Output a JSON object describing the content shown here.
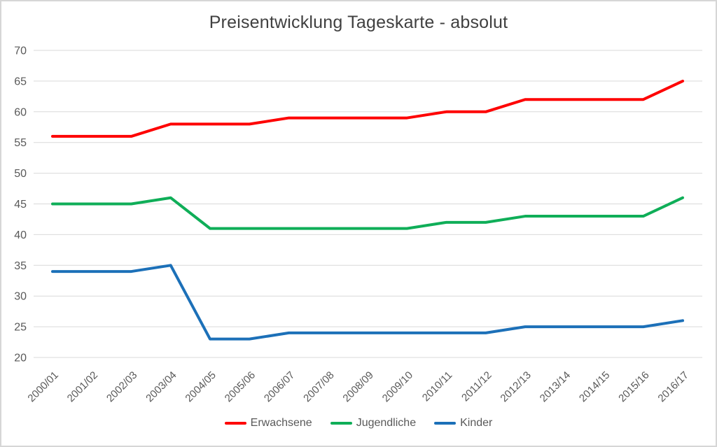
{
  "chart_data": {
    "type": "line",
    "title": "Preisentwicklung Tageskarte - absolut",
    "categories": [
      "2000/01",
      "2001/02",
      "2002/03",
      "2003/04",
      "2004/05",
      "2005/06",
      "2006/07",
      "2007/08",
      "2008/09",
      "2009/10",
      "2010/11",
      "2011/12",
      "2012/13",
      "2013/14",
      "2014/15",
      "2015/16",
      "2016/17"
    ],
    "series": [
      {
        "name": "Erwachsene",
        "color": "#fe0000",
        "values": [
          56,
          56,
          56,
          58,
          58,
          58,
          59,
          59,
          59,
          59,
          60,
          60,
          62,
          62,
          62,
          62,
          65
        ]
      },
      {
        "name": "Jugendliche",
        "color": "#0fae58",
        "values": [
          45,
          45,
          45,
          46,
          41,
          41,
          41,
          41,
          41,
          41,
          42,
          42,
          43,
          43,
          43,
          43,
          46
        ]
      },
      {
        "name": "Kinder",
        "color": "#1c70b8",
        "values": [
          34,
          34,
          34,
          35,
          23,
          23,
          24,
          24,
          24,
          24,
          24,
          24,
          25,
          25,
          25,
          25,
          26
        ]
      }
    ],
    "ylim": [
      20,
      70
    ],
    "yticks": [
      20,
      25,
      30,
      35,
      40,
      45,
      50,
      55,
      60,
      65,
      70
    ],
    "xlabel": "",
    "ylabel": "",
    "grid": true,
    "legend_position": "bottom",
    "colors": {
      "title_text": "#404040",
      "axis_text": "#595959",
      "gridline": "#d9d9d9",
      "background": "#ffffff",
      "frame_border": "#d6d6d6"
    }
  }
}
